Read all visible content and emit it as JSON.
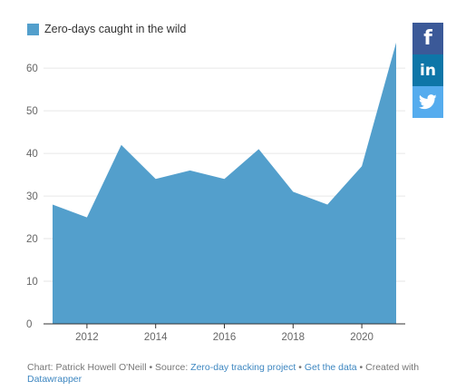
{
  "legend": {
    "label": "Zero-days caught in the wild"
  },
  "share": {
    "facebook": "f",
    "linkedin": "in",
    "twitter": "🐦"
  },
  "footer": {
    "prefix": "Chart: Patrick Howell O'Neill • Source: ",
    "source_link": "Zero-day tracking project",
    "sep": " • ",
    "data_link": "Get the data",
    "created": " • Created with ",
    "tool_link": "Datawrapper"
  },
  "colors": {
    "area": "#539fcc",
    "grid": "#e6e6e6",
    "axis": "#333333"
  },
  "chart_data": {
    "type": "area",
    "title": "",
    "xlabel": "",
    "ylabel": "",
    "x": [
      2011,
      2012,
      2013,
      2014,
      2015,
      2016,
      2017,
      2018,
      2019,
      2020,
      2021
    ],
    "series": [
      {
        "name": "Zero-days caught in the wild",
        "values": [
          28,
          25,
          42,
          34,
          36,
          34,
          41,
          31,
          28,
          37,
          66
        ]
      }
    ],
    "xticks": [
      2012,
      2014,
      2016,
      2018,
      2020
    ],
    "yticks": [
      0,
      10,
      20,
      30,
      40,
      50,
      60
    ],
    "xlim": [
      2011,
      2021
    ],
    "ylim": [
      0,
      66
    ],
    "grid": true,
    "legend_position": "top-left"
  }
}
